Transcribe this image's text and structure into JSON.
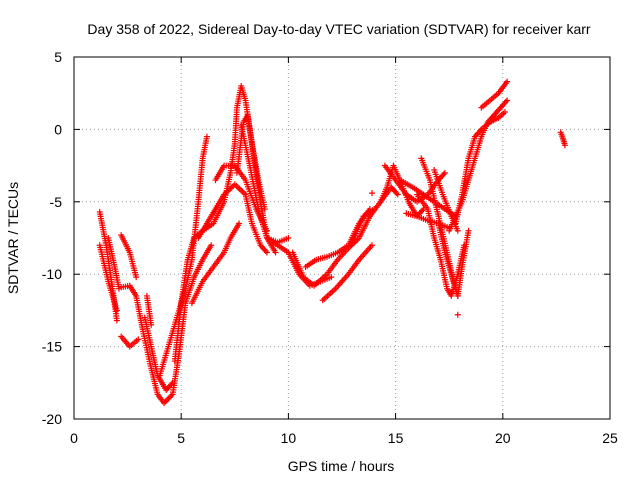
{
  "chart_data": {
    "type": "scatter",
    "title": "Day 358 of 2022, Sidereal Day-to-day VTEC variation (SDTVAR) for receiver karr",
    "xlabel": "GPS time / hours",
    "ylabel": "SDTVAR / TECUs",
    "xlim": [
      0,
      25
    ],
    "ylim": [
      -20,
      5
    ],
    "xticks": [
      "0",
      "5",
      "10",
      "15",
      "20",
      "25"
    ],
    "yticks": [
      "5",
      "0",
      "-5",
      "-10",
      "-15",
      "-20"
    ],
    "grid": true,
    "marker": "plus",
    "color": "#ff0000",
    "tracks": [
      {
        "points": [
          [
            1.2,
            -5.7
          ],
          [
            1.5,
            -8.0
          ],
          [
            1.8,
            -11.0
          ],
          [
            2.0,
            -13.2
          ]
        ]
      },
      {
        "points": [
          [
            1.2,
            -8.0
          ],
          [
            1.6,
            -10.5
          ],
          [
            2.0,
            -12.5
          ]
        ]
      },
      {
        "points": [
          [
            1.6,
            -7.5
          ],
          [
            1.9,
            -9.5
          ],
          [
            2.1,
            -11.0
          ]
        ]
      },
      {
        "points": [
          [
            2.2,
            -7.3
          ],
          [
            2.6,
            -8.5
          ],
          [
            2.9,
            -10.2
          ]
        ]
      },
      {
        "points": [
          [
            2.2,
            -10.9
          ],
          [
            2.6,
            -10.8
          ],
          [
            2.9,
            -11.5
          ],
          [
            3.2,
            -13.8
          ],
          [
            3.6,
            -16.5
          ],
          [
            3.9,
            -18.3
          ],
          [
            4.2,
            -18.9
          ],
          [
            4.6,
            -18.3
          ],
          [
            4.9,
            -15.5
          ],
          [
            5.2,
            -12.0
          ],
          [
            5.6,
            -10.2
          ],
          [
            6.0,
            -9.0
          ],
          [
            6.4,
            -8.0
          ]
        ]
      },
      {
        "points": [
          [
            2.2,
            -14.3
          ],
          [
            2.6,
            -15.0
          ],
          [
            3.0,
            -14.5
          ]
        ]
      },
      {
        "points": [
          [
            3.3,
            -13.0
          ],
          [
            3.6,
            -15.0
          ],
          [
            3.9,
            -17.0
          ],
          [
            4.3,
            -18.0
          ],
          [
            4.6,
            -17.5
          ]
        ]
      },
      {
        "points": [
          [
            3.4,
            -11.5
          ],
          [
            3.6,
            -13.5
          ]
        ]
      },
      {
        "points": [
          [
            4.0,
            -17.0
          ],
          [
            4.4,
            -15.0
          ],
          [
            4.8,
            -13.0
          ],
          [
            5.2,
            -11.0
          ],
          [
            5.5,
            -9.0
          ],
          [
            5.8,
            -5.0
          ],
          [
            6.0,
            -2.0
          ],
          [
            6.2,
            -0.5
          ]
        ]
      },
      {
        "points": [
          [
            4.7,
            -16.0
          ],
          [
            5.0,
            -12.0
          ],
          [
            5.3,
            -9.0
          ],
          [
            5.6,
            -7.5
          ],
          [
            6.0,
            -7.0
          ],
          [
            6.5,
            -6.5
          ],
          [
            7.0,
            -5.0
          ],
          [
            7.3,
            -3.0
          ],
          [
            7.5,
            -1.0
          ],
          [
            7.6,
            1.5
          ],
          [
            7.8,
            3.0
          ],
          [
            8.0,
            2.0
          ],
          [
            8.3,
            -1.0
          ],
          [
            8.6,
            -3.5
          ],
          [
            8.9,
            -5.5
          ]
        ]
      },
      {
        "points": [
          [
            5.5,
            -12.0
          ],
          [
            6.0,
            -10.5
          ],
          [
            6.5,
            -9.5
          ],
          [
            7.0,
            -8.5
          ],
          [
            7.3,
            -7.5
          ],
          [
            7.7,
            -6.5
          ]
        ]
      },
      {
        "points": [
          [
            5.8,
            -7.5
          ],
          [
            6.2,
            -6.5
          ],
          [
            6.6,
            -5.5
          ],
          [
            7.0,
            -4.5
          ],
          [
            7.5,
            -3.8
          ],
          [
            8.0,
            -4.5
          ],
          [
            8.3,
            -6.5
          ],
          [
            8.7,
            -8.0
          ],
          [
            9.0,
            -8.5
          ]
        ]
      },
      {
        "points": [
          [
            6.6,
            -3.5
          ],
          [
            7.0,
            -2.5
          ],
          [
            7.5,
            -2.5
          ],
          [
            8.0,
            -3.5
          ],
          [
            8.5,
            -5.5
          ],
          [
            9.0,
            -7.0
          ]
        ]
      },
      {
        "points": [
          [
            7.6,
            -3.0
          ],
          [
            7.9,
            0.5
          ],
          [
            8.1,
            1.0
          ],
          [
            8.4,
            -2.0
          ],
          [
            8.7,
            -5.0
          ],
          [
            9.0,
            -7.5
          ],
          [
            9.4,
            -8.5
          ]
        ]
      },
      {
        "points": [
          [
            7.8,
            0.3
          ],
          [
            8.2,
            -2.5
          ],
          [
            8.6,
            -5.5
          ],
          [
            9.0,
            -7.5
          ],
          [
            9.5,
            -7.8
          ],
          [
            10.0,
            -7.5
          ]
        ]
      },
      {
        "points": [
          [
            9.0,
            -7.5
          ],
          [
            9.5,
            -8.0
          ],
          [
            10.0,
            -8.5
          ],
          [
            10.5,
            -10.0
          ],
          [
            11.0,
            -10.8
          ],
          [
            11.5,
            -10.5
          ],
          [
            12.0,
            -10.2
          ]
        ]
      },
      {
        "points": [
          [
            10.2,
            -8.5
          ],
          [
            10.7,
            -10.2
          ],
          [
            11.2,
            -10.8
          ],
          [
            11.8,
            -10.0
          ],
          [
            12.3,
            -9.0
          ],
          [
            12.8,
            -8.2
          ],
          [
            13.3,
            -7.5
          ],
          [
            13.8,
            -6.0
          ],
          [
            14.3,
            -5.0
          ],
          [
            14.8,
            -4.0
          ],
          [
            15.1,
            -4.5
          ]
        ]
      },
      {
        "points": [
          [
            10.8,
            -9.5
          ],
          [
            11.3,
            -9.0
          ],
          [
            11.8,
            -8.8
          ],
          [
            12.3,
            -8.5
          ],
          [
            12.8,
            -8.0
          ],
          [
            13.3,
            -6.5
          ],
          [
            13.8,
            -5.5
          ]
        ]
      },
      {
        "points": [
          [
            11.6,
            -11.8
          ],
          [
            12.2,
            -11.0
          ],
          [
            12.8,
            -10.0
          ],
          [
            13.3,
            -9.0
          ],
          [
            13.9,
            -8.0
          ]
        ]
      },
      {
        "points": [
          [
            13.0,
            -7.8
          ],
          [
            13.5,
            -6.0
          ],
          [
            14.0,
            -5.5
          ]
        ]
      },
      {
        "points": [
          [
            14.3,
            -5.0
          ],
          [
            14.6,
            -4.0
          ],
          [
            14.9,
            -2.5
          ],
          [
            15.2,
            -3.5
          ],
          [
            15.6,
            -5.0
          ],
          [
            16.0,
            -6.0
          ],
          [
            16.3,
            -5.5
          ]
        ]
      },
      {
        "points": [
          [
            14.5,
            -2.5
          ],
          [
            15.0,
            -3.5
          ],
          [
            15.5,
            -4.5
          ],
          [
            16.0,
            -5.0
          ],
          [
            16.5,
            -4.5
          ],
          [
            17.0,
            -3.5
          ],
          [
            17.3,
            -3.0
          ]
        ]
      },
      {
        "points": [
          [
            15.2,
            -3.5
          ],
          [
            15.8,
            -4.0
          ],
          [
            16.3,
            -4.5
          ],
          [
            16.8,
            -5.0
          ],
          [
            17.3,
            -5.5
          ],
          [
            17.8,
            -6.0
          ]
        ]
      },
      {
        "points": [
          [
            15.5,
            -5.8
          ],
          [
            16.0,
            -6.0
          ],
          [
            16.5,
            -6.3
          ],
          [
            17.0,
            -6.5
          ],
          [
            17.5,
            -6.8
          ]
        ]
      },
      {
        "points": [
          [
            16.0,
            -4.5
          ],
          [
            16.5,
            -5.5
          ],
          [
            16.8,
            -7.5
          ],
          [
            17.1,
            -9.0
          ],
          [
            17.4,
            -11.0
          ],
          [
            17.6,
            -11.5
          ],
          [
            17.9,
            -10.0
          ],
          [
            18.2,
            -8.0
          ]
        ]
      },
      {
        "points": [
          [
            16.2,
            -2.0
          ],
          [
            16.6,
            -3.5
          ],
          [
            17.0,
            -6.0
          ],
          [
            17.4,
            -8.5
          ],
          [
            17.7,
            -10.5
          ],
          [
            17.9,
            -11.5
          ]
        ]
      },
      {
        "points": [
          [
            16.8,
            -2.8
          ],
          [
            17.2,
            -4.5
          ],
          [
            17.6,
            -6.0
          ],
          [
            17.9,
            -7.0
          ]
        ]
      },
      {
        "points": [
          [
            17.0,
            -6.5
          ],
          [
            17.3,
            -8.5
          ],
          [
            17.6,
            -10.0
          ],
          [
            17.9,
            -11.5
          ],
          [
            18.1,
            -9.5
          ],
          [
            18.4,
            -7.0
          ]
        ]
      },
      {
        "points": [
          [
            17.5,
            -7.0
          ],
          [
            17.8,
            -6.0
          ],
          [
            18.1,
            -5.0
          ],
          [
            18.4,
            -3.5
          ],
          [
            18.7,
            -2.0
          ],
          [
            19.0,
            -0.5
          ],
          [
            19.3,
            0.5
          ],
          [
            19.6,
            1.0
          ],
          [
            19.9,
            1.5
          ],
          [
            20.2,
            2.0
          ]
        ]
      },
      {
        "points": [
          [
            17.8,
            -6.5
          ],
          [
            18.1,
            -4.5
          ],
          [
            18.4,
            -2.0
          ],
          [
            18.7,
            -0.5
          ],
          [
            19.0,
            0.0
          ],
          [
            19.4,
            0.5
          ],
          [
            19.8,
            0.8
          ],
          [
            20.1,
            1.2
          ]
        ]
      },
      {
        "points": [
          [
            19.0,
            1.5
          ],
          [
            19.4,
            2.0
          ],
          [
            19.8,
            2.5
          ],
          [
            20.2,
            3.3
          ]
        ]
      },
      {
        "points": [
          [
            22.7,
            -0.2
          ],
          [
            22.8,
            -0.6
          ],
          [
            22.9,
            -1.1
          ]
        ]
      }
    ],
    "points": [
      [
        13.9,
        -4.4
      ],
      [
        17.9,
        -12.8
      ],
      [
        17.6,
        -11.3
      ]
    ]
  }
}
